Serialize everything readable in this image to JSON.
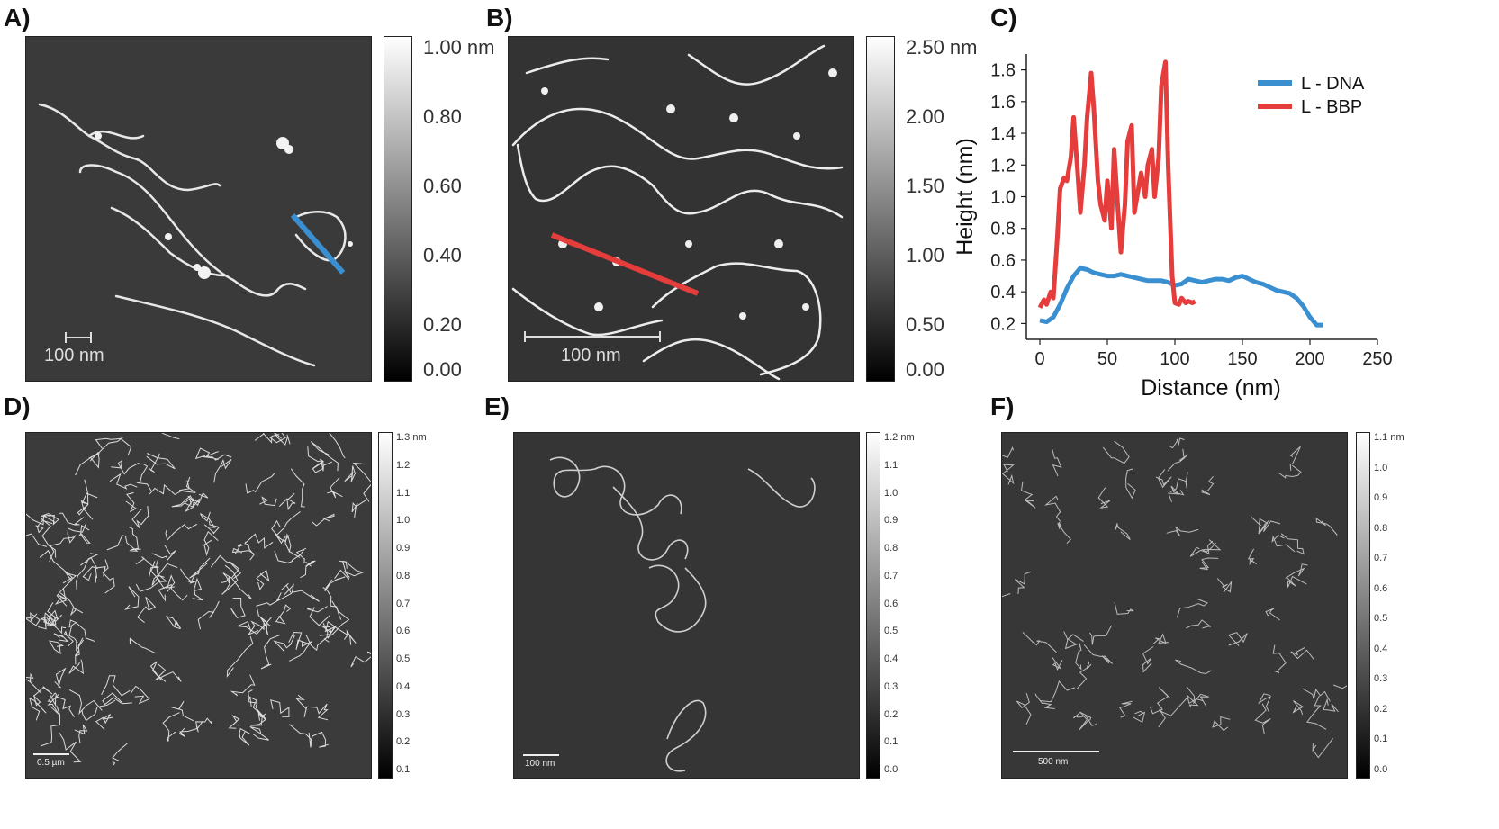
{
  "panels": {
    "a": {
      "label": "A)",
      "scalebar": "100 nm",
      "colorbar": [
        "1.00 nm",
        "0.80",
        "0.60",
        "0.40",
        "0.20",
        "0.00"
      ]
    },
    "b": {
      "label": "B)",
      "scalebar": "100 nm",
      "colorbar": [
        "2.50 nm",
        "2.00",
        "1.50",
        "1.00",
        "0.50",
        "0.00"
      ]
    },
    "c": {
      "label": "C)"
    },
    "d": {
      "label": "D)",
      "scalebar": "0.5 µm",
      "colorbar": [
        "1.3 nm",
        "1.2",
        "1.1",
        "1.0",
        "0.9",
        "0.8",
        "0.7",
        "0.6",
        "0.5",
        "0.4",
        "0.3",
        "0.2",
        "0.1"
      ]
    },
    "e": {
      "label": "E)",
      "scalebar": "100 nm",
      "colorbar": [
        "1.2 nm",
        "1.1",
        "1.0",
        "0.9",
        "0.8",
        "0.7",
        "0.6",
        "0.5",
        "0.4",
        "0.3",
        "0.2",
        "0.1",
        "0.0"
      ]
    },
    "f": {
      "label": "F)",
      "scalebar": "500 nm",
      "colorbar": [
        "1.1 nm",
        "1.0",
        "0.9",
        "0.8",
        "0.7",
        "0.6",
        "0.5",
        "0.4",
        "0.3",
        "0.2",
        "0.1",
        "0.0"
      ]
    }
  },
  "chart_data": {
    "type": "line",
    "xlabel": "Distance (nm)",
    "ylabel": "Height (nm)",
    "xlim": [
      -10,
      250
    ],
    "ylim": [
      0.1,
      1.9
    ],
    "xticks": [
      0,
      50,
      100,
      150,
      200,
      250
    ],
    "yticks": [
      0.2,
      0.4,
      0.6,
      0.8,
      1.0,
      1.2,
      1.4,
      1.6,
      1.8
    ],
    "ytick_labels": [
      "0.2",
      "0.4",
      "0.6",
      "0.8",
      "1.0",
      "1.2",
      "1.4",
      "1.6",
      "1.8"
    ],
    "legend_position": "top-right",
    "series": [
      {
        "name": "L - DNA",
        "color": "#3a8fd0",
        "x": [
          0,
          5,
          10,
          15,
          20,
          25,
          30,
          35,
          40,
          45,
          50,
          55,
          60,
          65,
          70,
          75,
          80,
          85,
          90,
          95,
          100,
          105,
          110,
          115,
          120,
          125,
          130,
          135,
          140,
          145,
          150,
          155,
          160,
          165,
          170,
          175,
          180,
          185,
          190,
          195,
          200,
          205,
          210
        ],
        "y": [
          0.22,
          0.21,
          0.24,
          0.32,
          0.42,
          0.5,
          0.55,
          0.54,
          0.52,
          0.51,
          0.5,
          0.5,
          0.51,
          0.5,
          0.49,
          0.48,
          0.47,
          0.47,
          0.47,
          0.46,
          0.44,
          0.45,
          0.48,
          0.47,
          0.46,
          0.47,
          0.48,
          0.48,
          0.47,
          0.49,
          0.5,
          0.48,
          0.46,
          0.45,
          0.43,
          0.41,
          0.4,
          0.39,
          0.36,
          0.31,
          0.24,
          0.19,
          0.19
        ]
      },
      {
        "name": "L - BBP",
        "color": "#e53c3c",
        "x": [
          0,
          3,
          5,
          8,
          10,
          13,
          15,
          18,
          20,
          23,
          25,
          28,
          30,
          33,
          35,
          38,
          40,
          43,
          45,
          48,
          50,
          53,
          55,
          58,
          60,
          63,
          65,
          68,
          70,
          73,
          75,
          78,
          80,
          83,
          85,
          88,
          90,
          93,
          95,
          98,
          100,
          103,
          105,
          108,
          110,
          113,
          115
        ],
        "y": [
          0.3,
          0.35,
          0.32,
          0.4,
          0.36,
          0.75,
          1.05,
          1.12,
          1.1,
          1.25,
          1.5,
          1.15,
          0.9,
          1.2,
          1.5,
          1.78,
          1.55,
          1.1,
          0.95,
          0.85,
          1.1,
          0.8,
          1.3,
          0.9,
          0.65,
          0.95,
          1.35,
          1.45,
          0.9,
          1.05,
          1.15,
          1.0,
          1.2,
          1.3,
          1.0,
          1.25,
          1.7,
          1.85,
          1.2,
          0.5,
          0.33,
          0.32,
          0.36,
          0.33,
          0.34,
          0.33,
          0.34
        ]
      }
    ]
  }
}
